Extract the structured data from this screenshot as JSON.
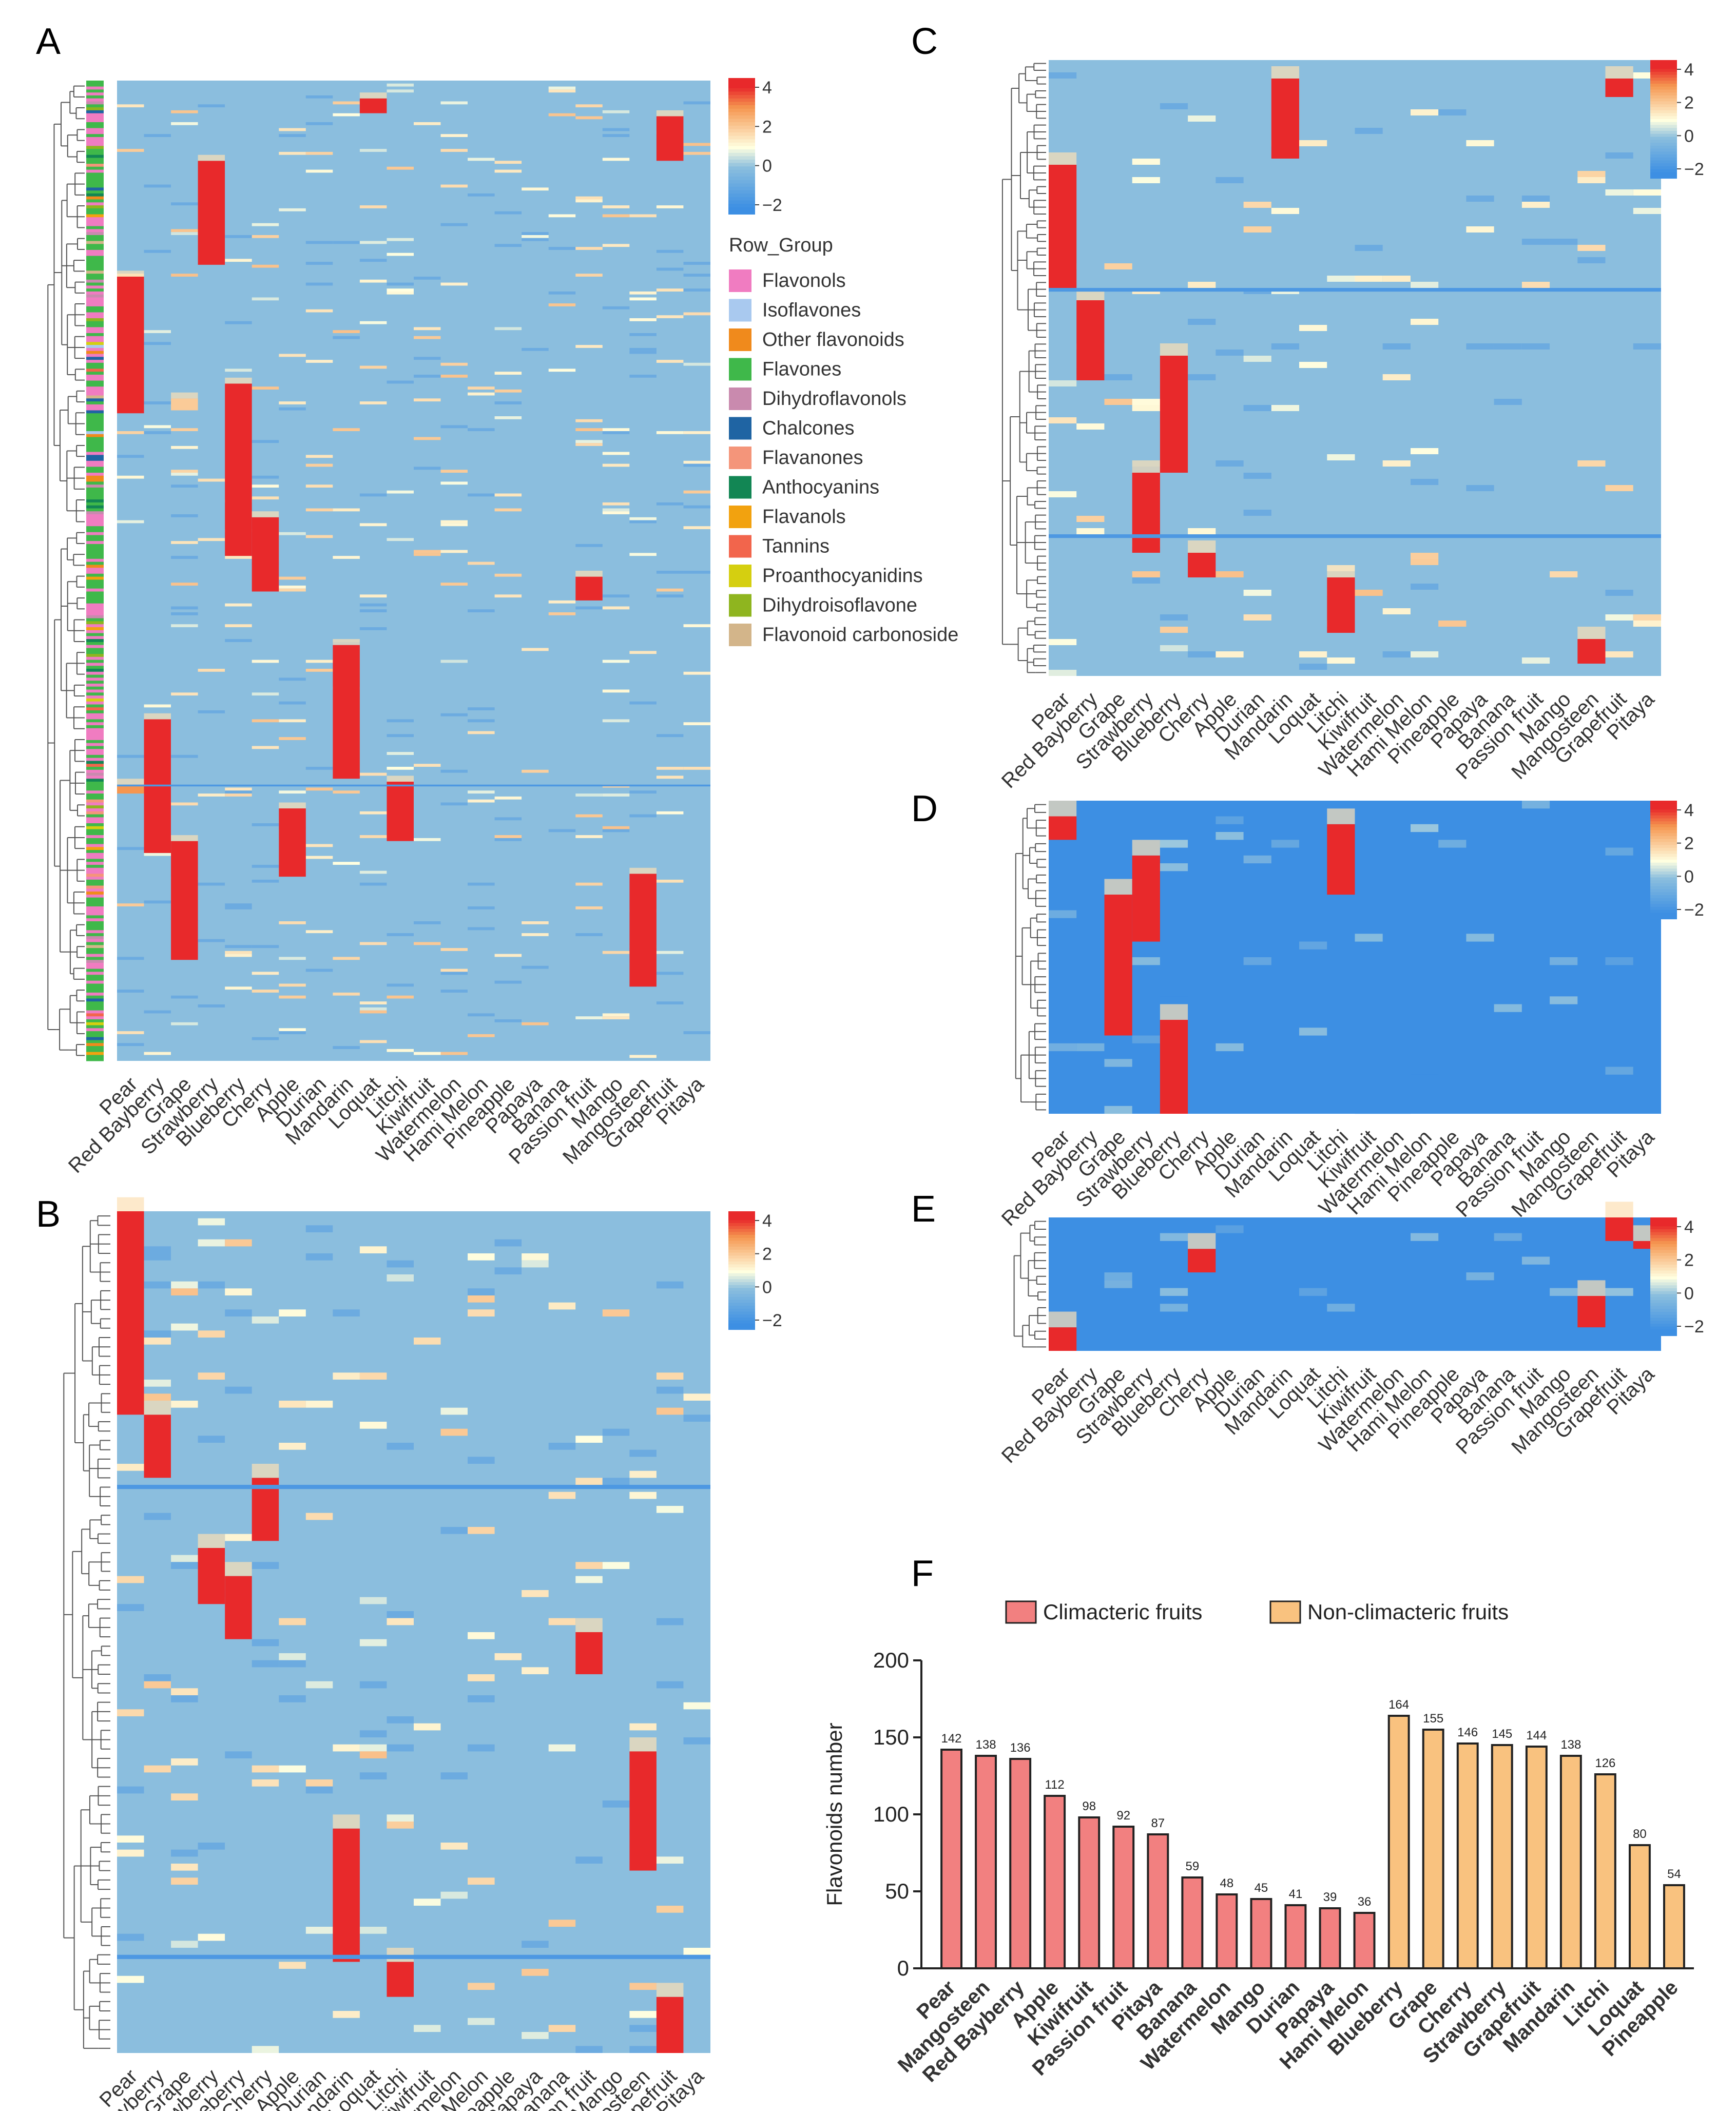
{
  "fruits": [
    "Pear",
    "Red Bayberry",
    "Grape",
    "Strawberry",
    "Blueberry",
    "Cherry",
    "Apple",
    "Durian",
    "Mandarin",
    "Loquat",
    "Litchi",
    "Kiwifruit",
    "Watermelon",
    "Hami Melon",
    "Pineapple",
    "Papaya",
    "Banana",
    "Passion fruit",
    "Mango",
    "Mangosteen",
    "Grapefruit",
    "Pitaya"
  ],
  "colorbar": {
    "ticks": [
      "4",
      "2",
      "0",
      "−2"
    ],
    "low": "#3d8fe3",
    "mid": "#ffffe0",
    "high": "#e8292b"
  },
  "legend": {
    "title": "Row_Group",
    "items": [
      {
        "label": "Flavonols",
        "color": "#f07cc1"
      },
      {
        "label": "Isoflavones",
        "color": "#a9c9ef"
      },
      {
        "label": "Other flavonoids",
        "color": "#f08a1c"
      },
      {
        "label": "Flavones",
        "color": "#3fb84a"
      },
      {
        "label": "Dihydroflavonols",
        "color": "#c98aae"
      },
      {
        "label": "Chalcones",
        "color": "#1f64a3"
      },
      {
        "label": "Flavanones",
        "color": "#f4957a"
      },
      {
        "label": "Anthocyanins",
        "color": "#128654"
      },
      {
        "label": "Flavanols",
        "color": "#f2a20f"
      },
      {
        "label": "Tannins",
        "color": "#f2654c"
      },
      {
        "label": "Proanthocyanidins",
        "color": "#d5cf10"
      },
      {
        "label": "Dihydroisoflavone",
        "color": "#8fb51f"
      },
      {
        "label": "Flavonoid carbonoside",
        "color": "#d3b58a"
      }
    ]
  },
  "panels": [
    "A",
    "B",
    "C",
    "D",
    "E",
    "F"
  ],
  "chart_data": [
    {
      "panel": "A",
      "type": "heatmap",
      "rows": 330,
      "bg": 0.0,
      "blocks": [
        {
          "c": 0,
          "r0": 66,
          "r1": 112,
          "v": 4
        },
        {
          "c": 1,
          "r0": 215,
          "r1": 260,
          "v": 4
        },
        {
          "c": 2,
          "r0": 256,
          "r1": 296,
          "v": 4
        },
        {
          "c": 3,
          "r0": 27,
          "r1": 62,
          "v": 4
        },
        {
          "c": 4,
          "r0": 102,
          "r1": 160,
          "v": 4
        },
        {
          "c": 5,
          "r0": 147,
          "r1": 172,
          "v": 4
        },
        {
          "c": 6,
          "r0": 245,
          "r1": 268,
          "v": 4
        },
        {
          "c": 8,
          "r0": 190,
          "r1": 235,
          "v": 4
        },
        {
          "c": 9,
          "r0": 6,
          "r1": 11,
          "v": 4
        },
        {
          "c": 10,
          "r0": 236,
          "r1": 256,
          "v": 4
        },
        {
          "c": 19,
          "r0": 267,
          "r1": 305,
          "v": 4
        },
        {
          "c": 20,
          "r0": 12,
          "r1": 27,
          "v": 4
        },
        {
          "c": 17,
          "r0": 167,
          "r1": 175,
          "v": 4
        },
        {
          "c": 0,
          "r0": 237,
          "r1": 240,
          "v": 3
        },
        {
          "c": 2,
          "r0": 107,
          "r1": 111,
          "v": 2
        }
      ],
      "dividers": [
        237
      ],
      "x_labels": "fruits"
    },
    {
      "panel": "B",
      "type": "heatmap",
      "rows": 120,
      "bg": 0.0,
      "blocks": [
        {
          "c": 0,
          "r0": 0,
          "r1": 29,
          "v": 4
        },
        {
          "c": 1,
          "r0": 29,
          "r1": 38,
          "v": 4
        },
        {
          "c": 3,
          "r0": 48,
          "r1": 56,
          "v": 4
        },
        {
          "c": 4,
          "r0": 52,
          "r1": 61,
          "v": 4
        },
        {
          "c": 5,
          "r0": 38,
          "r1": 47,
          "v": 4
        },
        {
          "c": 8,
          "r0": 88,
          "r1": 107,
          "v": 4
        },
        {
          "c": 10,
          "r0": 107,
          "r1": 112,
          "v": 4
        },
        {
          "c": 19,
          "r0": 77,
          "r1": 94,
          "v": 4
        },
        {
          "c": 20,
          "r0": 112,
          "r1": 120,
          "v": 4
        },
        {
          "c": 17,
          "r0": 60,
          "r1": 66,
          "v": 4
        }
      ],
      "dividers": [
        39,
        106
      ],
      "x_labels": "fruits"
    },
    {
      "panel": "C",
      "type": "heatmap",
      "rows": 100,
      "bg": 0.0,
      "blocks": [
        {
          "c": 0,
          "r0": 17,
          "r1": 37,
          "v": 4
        },
        {
          "c": 1,
          "r0": 39,
          "r1": 52,
          "v": 4
        },
        {
          "c": 3,
          "r0": 67,
          "r1": 80,
          "v": 4
        },
        {
          "c": 4,
          "r0": 48,
          "r1": 67,
          "v": 4
        },
        {
          "c": 5,
          "r0": 80,
          "r1": 84,
          "v": 4
        },
        {
          "c": 8,
          "r0": 3,
          "r1": 16,
          "v": 4
        },
        {
          "c": 10,
          "r0": 84,
          "r1": 93,
          "v": 4
        },
        {
          "c": 19,
          "r0": 94,
          "r1": 98,
          "v": 4
        },
        {
          "c": 20,
          "r0": 3,
          "r1": 6,
          "v": 4
        }
      ],
      "dividers": [
        37,
        77
      ],
      "x_labels": "fruits"
    },
    {
      "panel": "D",
      "type": "heatmap",
      "rows": 40,
      "bg": -2.0,
      "blocks": [
        {
          "c": 0,
          "r0": 2,
          "r1": 5,
          "v": 4
        },
        {
          "c": 2,
          "r0": 12,
          "r1": 30,
          "v": 4
        },
        {
          "c": 3,
          "r0": 7,
          "r1": 18,
          "v": 4
        },
        {
          "c": 4,
          "r0": 28,
          "r1": 40,
          "v": 4
        },
        {
          "c": 10,
          "r0": 3,
          "r1": 12,
          "v": 4
        }
      ],
      "dividers": [],
      "x_labels": "fruits"
    },
    {
      "panel": "E",
      "type": "heatmap",
      "rows": 17,
      "bg": -2.0,
      "blocks": [
        {
          "c": 0,
          "r0": 14,
          "r1": 17,
          "v": 4
        },
        {
          "c": 5,
          "r0": 4,
          "r1": 7,
          "v": 4
        },
        {
          "c": 19,
          "r0": 10,
          "r1": 14,
          "v": 4
        },
        {
          "c": 20,
          "r0": 0,
          "r1": 3,
          "v": 4
        },
        {
          "c": 21,
          "r0": 3,
          "r1": 4,
          "v": 4
        }
      ],
      "dividers": [],
      "x_labels": "fruits"
    },
    {
      "panel": "F",
      "type": "bar",
      "ylabel": "Flavonoids number",
      "ylim": [
        0,
        200
      ],
      "yticks": [
        0,
        50,
        100,
        150,
        200
      ],
      "legend": [
        {
          "label": "Climacteric fruits",
          "color": "#f28080"
        },
        {
          "label": "Non-climacteric fruits",
          "color": "#f9c27f"
        }
      ],
      "categories": [
        "Pear",
        "Mangosteen",
        "Red Bayberry",
        "Apple",
        "Kiwifruit",
        "Passion fruit",
        "Pitaya",
        "Banana",
        "Watermelon",
        "Mango",
        "Durian",
        "Papaya",
        "Hami Melon",
        "Blueberry",
        "Grape",
        "Cherry",
        "Strawberry",
        "Grapefruit",
        "Mandarin",
        "Litchi",
        "Loquat",
        "Pineapple"
      ],
      "values": [
        142,
        138,
        136,
        112,
        98,
        92,
        87,
        59,
        48,
        45,
        41,
        39,
        36,
        164,
        155,
        146,
        145,
        144,
        138,
        126,
        80,
        54
      ],
      "groups": [
        0,
        0,
        0,
        0,
        0,
        0,
        0,
        0,
        0,
        0,
        0,
        0,
        0,
        1,
        1,
        1,
        1,
        1,
        1,
        1,
        1,
        1
      ]
    }
  ]
}
